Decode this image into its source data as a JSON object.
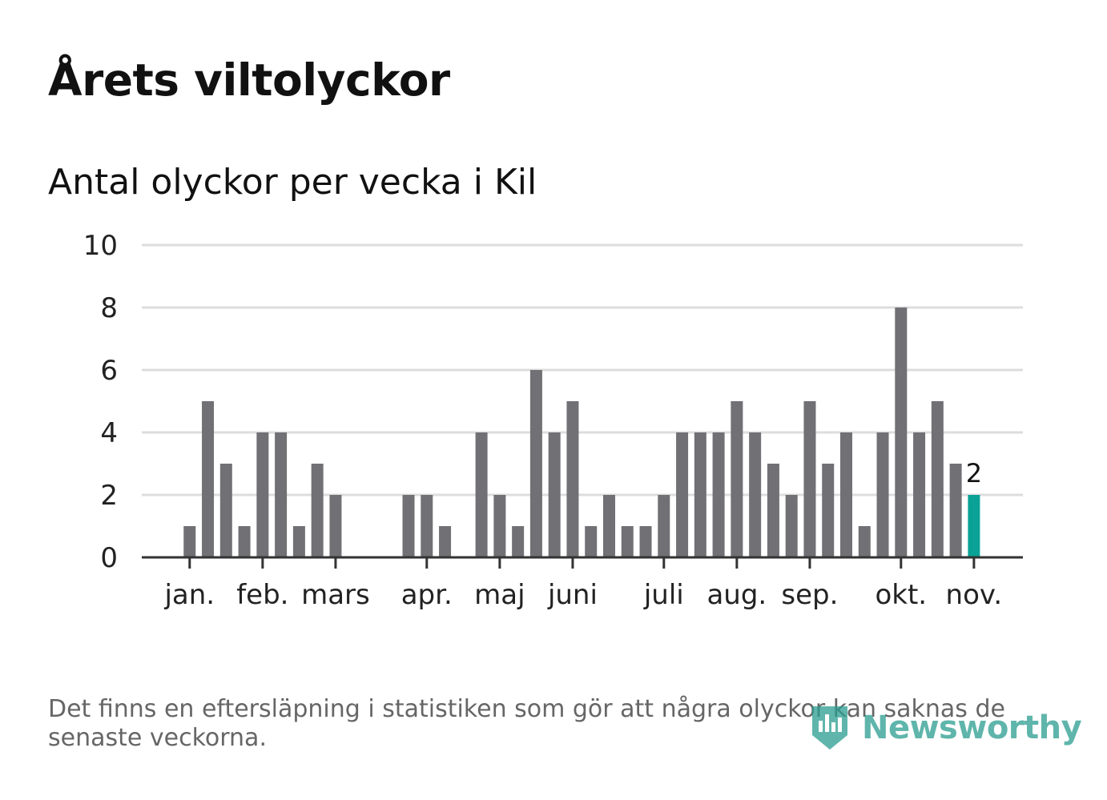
{
  "title": "Årets viltolyckor",
  "subtitle": "Antal olyckor per vecka i Kil",
  "note": "Det finns en eftersläpning i statistiken som gör att några olyckor kan saknas de senaste veckorna.",
  "logo": {
    "text": "Newsworthy",
    "icon": "newsworthy-logo-icon",
    "color": "#2a9d8f"
  },
  "chart_data": {
    "type": "bar",
    "title": "Antal olyckor per vecka i Kil",
    "xlabel": "",
    "ylabel": "",
    "ylim": [
      0,
      10
    ],
    "yticks": [
      0,
      2,
      4,
      6,
      8,
      10
    ],
    "grid": true,
    "weeks": [
      1,
      2,
      3,
      4,
      5,
      6,
      7,
      8,
      9,
      10,
      11,
      12,
      13,
      14,
      15,
      16,
      17,
      18,
      19,
      20,
      21,
      22,
      23,
      24,
      25,
      26,
      27,
      28,
      29,
      30,
      31,
      32,
      33,
      34,
      35,
      36,
      37,
      38,
      39,
      40,
      41,
      42,
      43,
      44,
      45
    ],
    "values": [
      0,
      1,
      5,
      3,
      1,
      4,
      4,
      1,
      3,
      2,
      0,
      0,
      0,
      2,
      2,
      1,
      0,
      4,
      2,
      1,
      6,
      4,
      5,
      1,
      2,
      1,
      1,
      2,
      4,
      4,
      4,
      5,
      4,
      3,
      2,
      5,
      3,
      4,
      1,
      4,
      8,
      4,
      5,
      3,
      2
    ],
    "month_ticks": [
      {
        "label": "jan.",
        "week": 2
      },
      {
        "label": "feb.",
        "week": 6
      },
      {
        "label": "mars",
        "week": 10
      },
      {
        "label": "apr.",
        "week": 15
      },
      {
        "label": "maj",
        "week": 19
      },
      {
        "label": "juni",
        "week": 23
      },
      {
        "label": "juli",
        "week": 28
      },
      {
        "label": "aug.",
        "week": 32
      },
      {
        "label": "sep.",
        "week": 36
      },
      {
        "label": "okt.",
        "week": 41
      },
      {
        "label": "nov.",
        "week": 45
      }
    ],
    "highlight": {
      "week": 45,
      "value": 2,
      "label": "2"
    },
    "colors": {
      "bar": "#707075",
      "highlight": "#0aa296",
      "grid": "#dddddd",
      "axis": "#333333",
      "tick_text": "#222222"
    }
  }
}
